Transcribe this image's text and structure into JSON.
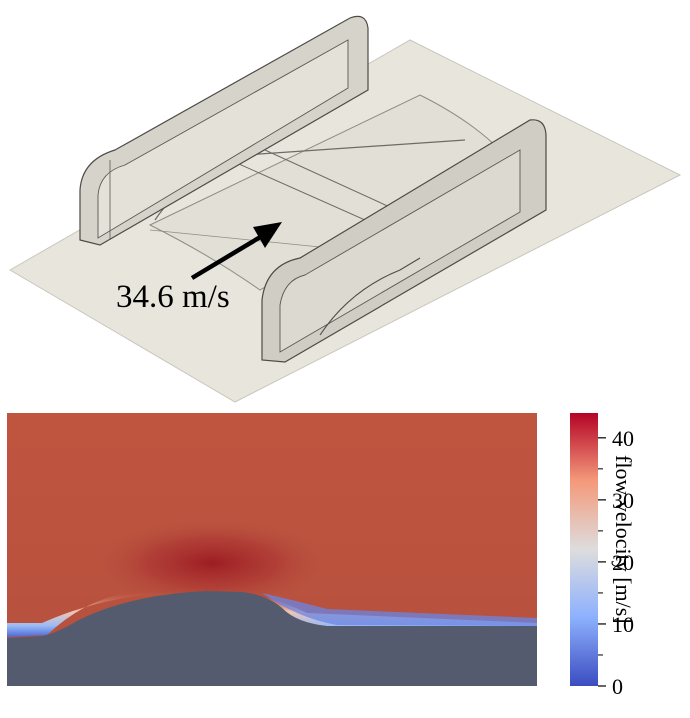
{
  "inlet": {
    "speed_label": "34.6 m/s"
  },
  "colorbar": {
    "title": "flow velocity [m/s]",
    "min": 0,
    "max": 44,
    "major_ticks": [
      "40",
      "30",
      "20",
      "10",
      "0"
    ],
    "major_values": [
      40,
      30,
      20,
      10,
      0
    ],
    "minor_values": [
      35,
      25,
      15,
      5
    ],
    "colors": [
      "#3b4cc0",
      "#8db0fe",
      "#dddddd",
      "#f49a7b",
      "#b40426"
    ]
  },
  "colors": {
    "floor": "#e8e5dc",
    "model_surface": "#d8d5cc",
    "field_background": "#b8533f",
    "solid_body": "#545b6e"
  }
}
